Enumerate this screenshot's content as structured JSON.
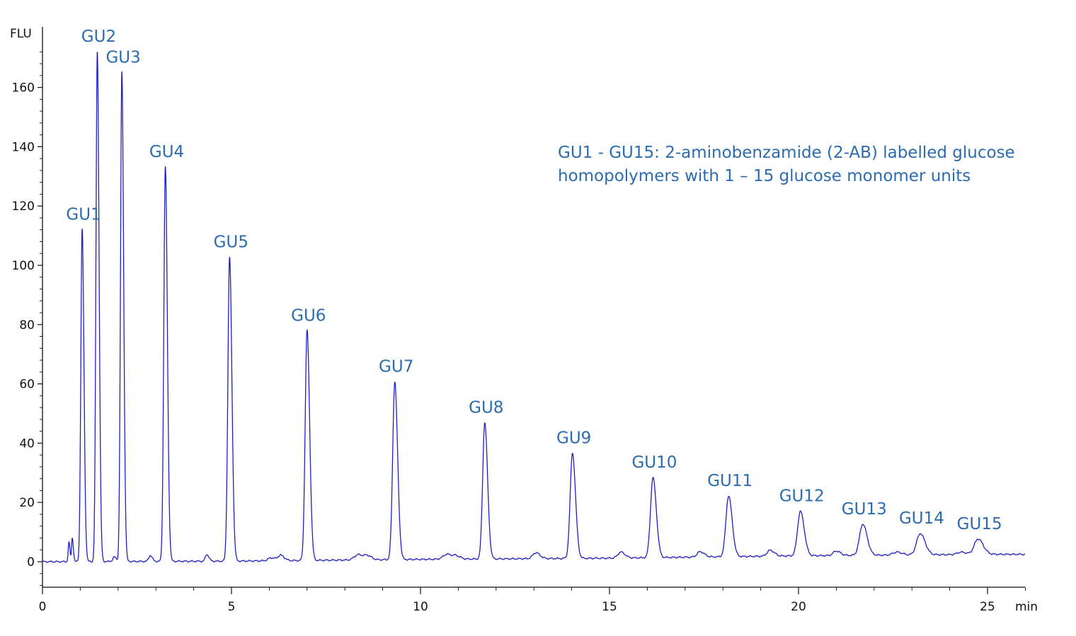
{
  "chart_data": {
    "type": "line",
    "title": "",
    "xlabel": "min",
    "ylabel": "FLU",
    "xlim": [
      0,
      26
    ],
    "ylim": [
      -9,
      180
    ],
    "x_ticks": [
      0,
      5,
      10,
      15,
      20,
      25
    ],
    "y_ticks": [
      0,
      20,
      40,
      60,
      80,
      100,
      120,
      140,
      160
    ],
    "grid": false,
    "legend": "none",
    "colors": {
      "trace": "#1f1fc4",
      "labels": "#2b6cb0",
      "axis": "#111111"
    },
    "annotation": [
      "GU1 - GU15: 2-aminobenzamide (2-AB) labelled glucose",
      "homopolymers with 1 – 15 glucose monomer units"
    ],
    "peaks": [
      {
        "label": "GU1",
        "time": 1.05,
        "height": 112,
        "sigma": 0.035
      },
      {
        "label": "GU2",
        "time": 1.45,
        "height": 172,
        "sigma": 0.035
      },
      {
        "label": "GU3",
        "time": 2.1,
        "height": 165,
        "sigma": 0.035
      },
      {
        "label": "GU4",
        "time": 3.25,
        "height": 133,
        "sigma": 0.04
      },
      {
        "label": "GU5",
        "time": 4.95,
        "height": 102.5,
        "sigma": 0.045
      },
      {
        "label": "GU6",
        "time": 7.0,
        "height": 77.5,
        "sigma": 0.05
      },
      {
        "label": "GU7",
        "time": 9.32,
        "height": 60,
        "sigma": 0.055
      },
      {
        "label": "GU8",
        "time": 11.7,
        "height": 46,
        "sigma": 0.055
      },
      {
        "label": "GU9",
        "time": 14.02,
        "height": 35.5,
        "sigma": 0.06
      },
      {
        "label": "GU10",
        "time": 16.15,
        "height": 27,
        "sigma": 0.065
      },
      {
        "label": "GU11",
        "time": 18.15,
        "height": 20.5,
        "sigma": 0.07
      },
      {
        "label": "GU12",
        "time": 20.05,
        "height": 15,
        "sigma": 0.075
      },
      {
        "label": "GU13",
        "time": 21.7,
        "height": 10.5,
        "sigma": 0.085
      },
      {
        "label": "GU14",
        "time": 23.22,
        "height": 7.2,
        "sigma": 0.095
      },
      {
        "label": "GU15",
        "time": 24.75,
        "height": 5.2,
        "sigma": 0.1
      }
    ],
    "minor_peaks": [
      {
        "time": 0.7,
        "height": 6.5,
        "sigma": 0.02
      },
      {
        "time": 0.79,
        "height": 8.0,
        "sigma": 0.02
      },
      {
        "time": 1.9,
        "height": 1.5,
        "sigma": 0.04
      },
      {
        "time": 2.85,
        "height": 2.0,
        "sigma": 0.04
      },
      {
        "time": 4.35,
        "height": 2.3,
        "sigma": 0.04
      },
      {
        "time": 6.05,
        "height": 1.0,
        "sigma": 0.08
      },
      {
        "time": 6.3,
        "height": 1.8,
        "sigma": 0.07
      },
      {
        "time": 8.35,
        "height": 1.8,
        "sigma": 0.1
      },
      {
        "time": 8.6,
        "height": 1.3,
        "sigma": 0.08
      },
      {
        "time": 10.7,
        "height": 1.7,
        "sigma": 0.1
      },
      {
        "time": 10.95,
        "height": 1.0,
        "sigma": 0.08
      },
      {
        "time": 13.05,
        "height": 2.0,
        "sigma": 0.08
      },
      {
        "time": 15.3,
        "height": 2.0,
        "sigma": 0.08
      },
      {
        "time": 17.4,
        "height": 1.8,
        "sigma": 0.08
      },
      {
        "time": 19.25,
        "height": 2.0,
        "sigma": 0.08
      },
      {
        "time": 21.0,
        "height": 1.5,
        "sigma": 0.08
      },
      {
        "time": 22.6,
        "height": 1.0,
        "sigma": 0.1
      },
      {
        "time": 24.3,
        "height": 0.8,
        "sigma": 0.1
      }
    ],
    "baseline": [
      [
        0,
        0
      ],
      [
        5,
        0.2
      ],
      [
        10,
        0.8
      ],
      [
        15,
        1.2
      ],
      [
        20,
        2.0
      ],
      [
        25,
        2.5
      ],
      [
        26,
        2.5
      ]
    ]
  }
}
